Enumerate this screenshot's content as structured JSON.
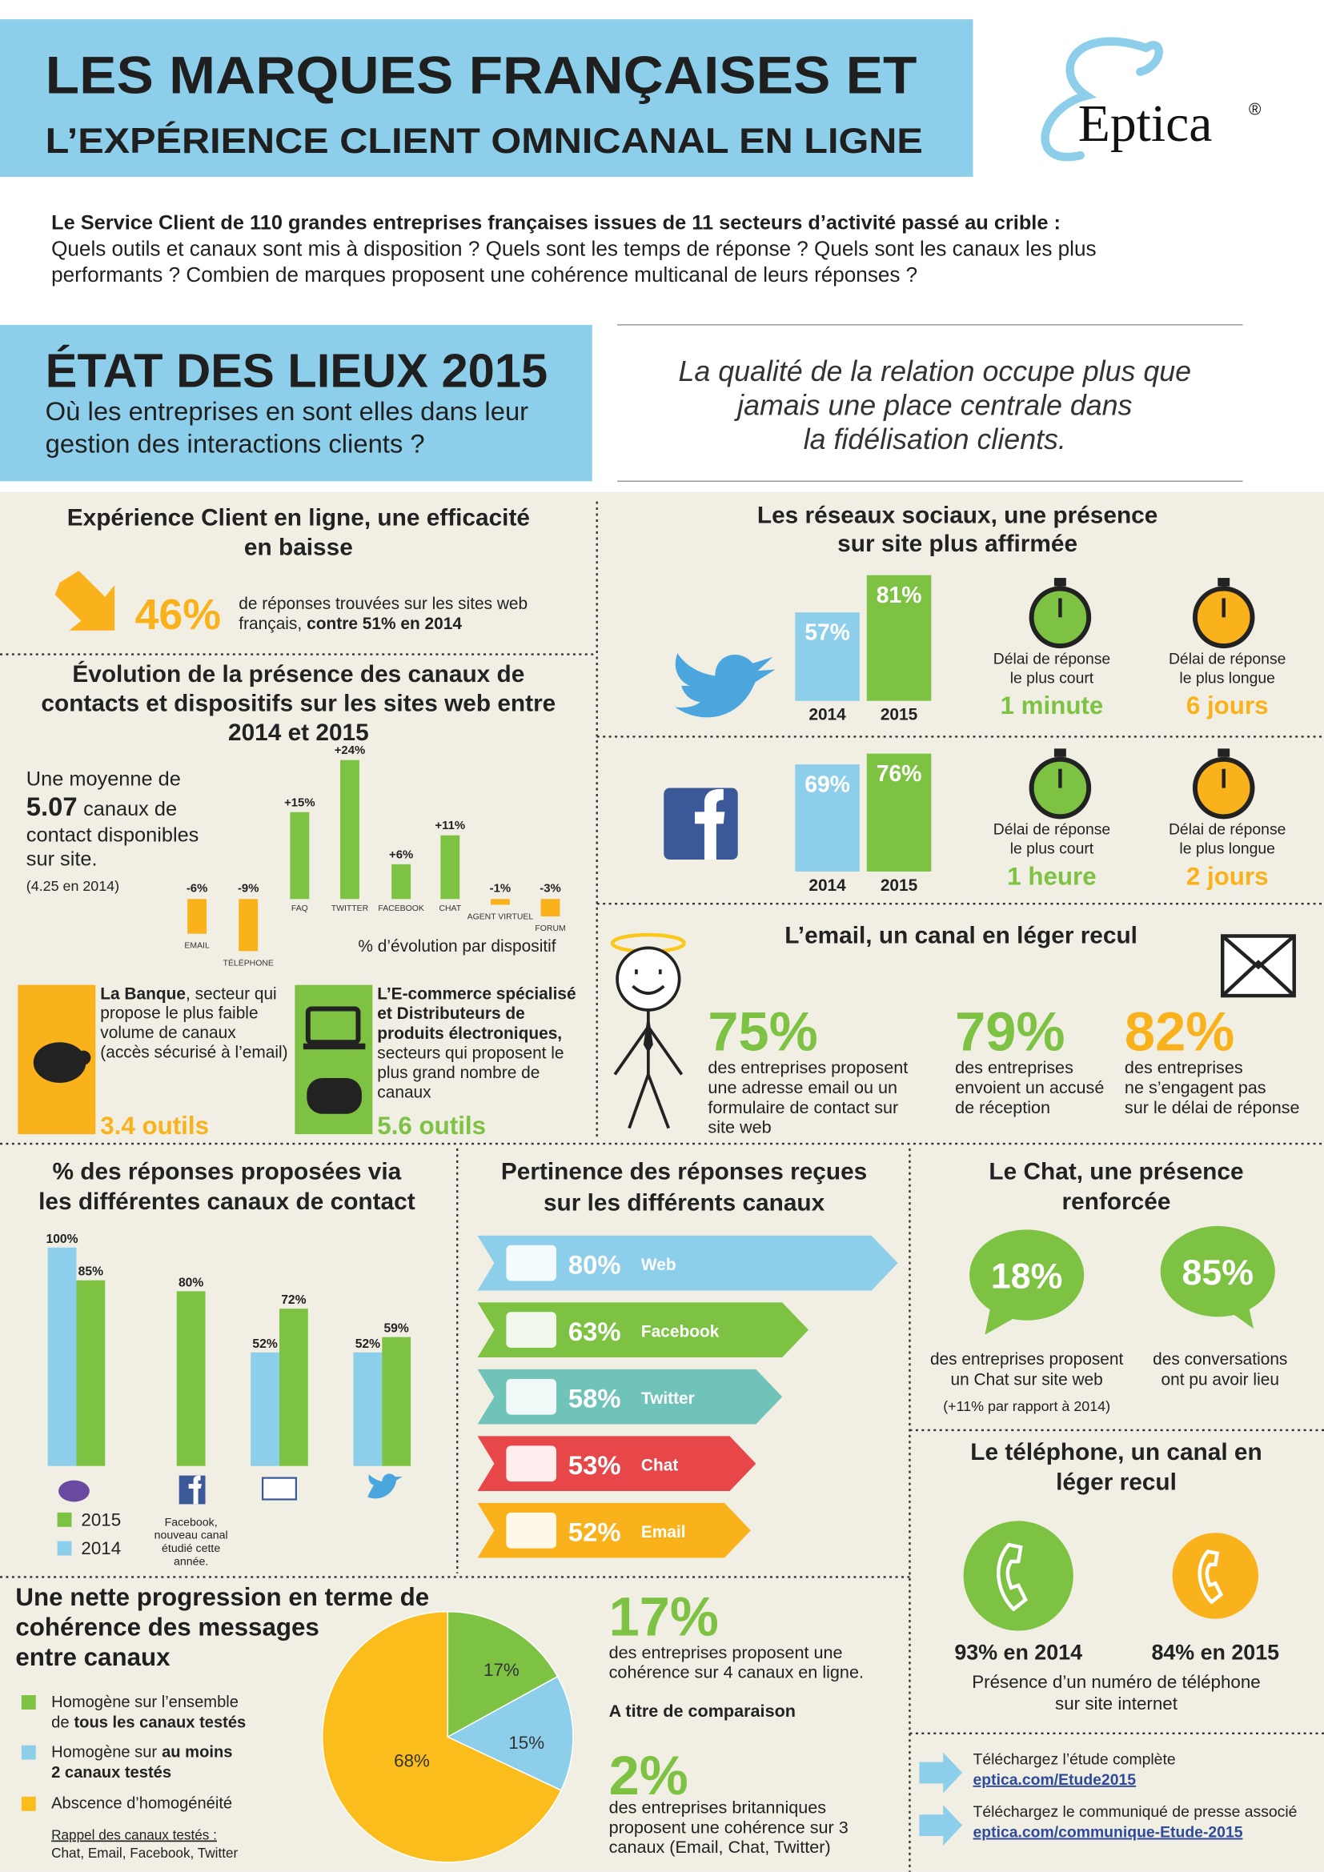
{
  "header": {
    "title_line1": "LES MARQUES FRANÇAISES ET",
    "title_line2": "L’EXPÉRIENCE CLIENT OMNICANAL EN LIGNE",
    "logo": "Eptica",
    "logo_mark": "®"
  },
  "intro": {
    "bold_line": "Le Service Client de 110 grandes entreprises françaises issues de 11 secteurs d’activité passé au crible :",
    "lines": [
      "Quels outils et canaux sont mis à disposition ? Quels sont les temps de réponse ? Quels sont les canaux les plus",
      "performants ? Combien de marques proposent une cohérence multicanal de leurs réponses ?"
    ]
  },
  "state": {
    "title": "ÉTAT DES LIEUX 2015",
    "subtitle": [
      "Où les entreprises en sont elles dans leur",
      "gestion des interactions clients ?"
    ],
    "quote": [
      "La qualité de la relation occupe plus que",
      "jamais une place centrale dans",
      "la fidélisation clients."
    ]
  },
  "efficacy": {
    "title": [
      "Expérience Client en ligne, une efficacité",
      "en baisse"
    ],
    "value": "46%",
    "text_line1": "de réponses trouvées sur les sites web",
    "text_line2": "français,",
    "text_line2_bold": "contre 51% en 2014"
  },
  "evolution": {
    "title": [
      "Évolution de la présence des canaux de",
      "contacts et dispositifs sur les sites web entre",
      "2014 et 2015"
    ],
    "average_intro": "Une moyenne de",
    "average_value": "5.07",
    "average_unit": "canaux de",
    "average_lines": [
      "contact disponibles",
      "sur site."
    ],
    "average_2014": "(4.25 en 2014)",
    "caption": "% d’évolution par dispositif",
    "chart": {
      "type": "bar",
      "categories": [
        "EMAIL",
        "TÉLÉPHONE",
        "FAQ",
        "TWITTER",
        "FACEBOOK",
        "CHAT",
        "AGENT VIRTUEL",
        "FORUM"
      ],
      "values": [
        -6,
        -9,
        15,
        24,
        6,
        11,
        -1,
        -3
      ],
      "value_labels": [
        "-6%",
        "-9%",
        "+15%",
        "+24%",
        "+6%",
        "+11%",
        "-1%",
        "-3%"
      ],
      "positive_color": "#7dc242",
      "negative_color": "#f9b21b"
    },
    "bank": {
      "name": "La Banque",
      "name_rest": ", secteur qui",
      "lines": [
        "propose le plus faible",
        "volume de canaux",
        "(accès sécurisé à l’email)"
      ],
      "value": "3.4 outils"
    },
    "ecommerce": {
      "bold_lines": [
        "L’E-commerce spécialisé",
        "et Distributeurs de",
        "produits électroniques,"
      ],
      "lines": [
        "secteurs qui proposent le",
        "plus grand nombre de",
        "canaux"
      ],
      "value": "5.6 outils"
    }
  },
  "social": {
    "title": [
      "Les réseaux sociaux, une présence",
      "sur site plus affirmée"
    ],
    "twitter": {
      "chart": {
        "type": "bar",
        "categories": [
          "2014",
          "2015"
        ],
        "values": [
          57,
          81
        ],
        "value_labels": [
          "57%",
          "81%"
        ],
        "colors": [
          "#8dcfea",
          "#7dc242"
        ]
      },
      "shortest_label": [
        "Délai de réponse",
        "le plus court"
      ],
      "shortest_value": "1 minute",
      "longest_label": [
        "Délai de réponse",
        "le plus longue"
      ],
      "longest_value": "6 jours"
    },
    "facebook": {
      "chart": {
        "type": "bar",
        "categories": [
          "2014",
          "2015"
        ],
        "values": [
          69,
          76
        ],
        "value_labels": [
          "69%",
          "76%"
        ],
        "colors": [
          "#8dcfea",
          "#7dc242"
        ]
      },
      "shortest_label": [
        "Délai de réponse",
        "le plus court"
      ],
      "shortest_value": "1 heure",
      "longest_label": [
        "Délai de réponse",
        "le plus longue"
      ],
      "longest_value": "2 jours"
    }
  },
  "email": {
    "title": "L’email, un canal en léger recul",
    "stats": [
      {
        "value": "75%",
        "lines": [
          "des entreprises proposent",
          "une adresse email ou un",
          "formulaire de contact sur",
          "site web"
        ]
      },
      {
        "value": "79%",
        "lines": [
          "des entreprises",
          "envoient un accusé",
          "de réception"
        ]
      },
      {
        "value": "82%",
        "lines": [
          "des entreprises",
          "ne s’engagent pas",
          "sur le délai de réponse"
        ]
      }
    ]
  },
  "responses": {
    "title": [
      "% des réponses proposées via",
      "les différentes canaux de contact"
    ],
    "note": [
      "Facebook,",
      "nouveau canal",
      "étudié cette",
      "année."
    ],
    "chart": {
      "type": "bar",
      "categories": [
        null,
        null,
        null,
        null
      ],
      "series": [
        {
          "name": "2015",
          "color": "#7dc242",
          "values": [
            85,
            80,
            72,
            59
          ],
          "value_labels": [
            "85%",
            "80%",
            "72%",
            "59%"
          ]
        },
        {
          "name": "2014",
          "color": "#8dcfea",
          "values": [
            100,
            null,
            52,
            52
          ],
          "value_labels": [
            "100%",
            null,
            "52%",
            "52%"
          ]
        }
      ],
      "ylim": [
        0,
        100
      ]
    }
  },
  "pertinence": {
    "title": [
      "Pertinence des réponses reçues",
      "sur les différents canaux"
    ],
    "chart": {
      "type": "hbar",
      "categories": [
        "Web",
        "Facebook",
        "Twitter",
        "Chat",
        "Email"
      ],
      "values": [
        80,
        63,
        58,
        53,
        52
      ],
      "value_labels": [
        "80%",
        "63%",
        "58%",
        "53%",
        "52%"
      ],
      "colors": [
        "#8dcfea",
        "#7dc242",
        "#6fc3b8",
        "#e8474a",
        "#f9b21b"
      ]
    }
  },
  "chat": {
    "title": [
      "Le Chat, une présence",
      "renforcée"
    ],
    "stats": [
      {
        "value": "18%",
        "lines": [
          "des entreprises proposent",
          "un Chat sur site web"
        ],
        "note": "(+11% par rapport à 2014)"
      },
      {
        "value": "85%",
        "lines": [
          "des conversations",
          "ont pu avoir lieu"
        ]
      }
    ]
  },
  "phone": {
    "title": [
      "Le téléphone, un canal en",
      "léger recul"
    ],
    "stat_2014": "93% en 2014",
    "stat_2015": "84% en 2015",
    "lines": [
      "Présence d’un numéro de téléphone",
      "sur site internet"
    ]
  },
  "downloads": [
    {
      "text": "Téléchargez l’étude complète",
      "link": "eptica.com/Etude2015"
    },
    {
      "text": "Téléchargez le communiqué de presse associé",
      "link": "eptica.com/communique-Etude-2015"
    }
  ],
  "coherence": {
    "title": [
      "Une nette progression en terme de",
      "cohérence des messages",
      "entre canaux"
    ],
    "legend": {
      "all_line1": "Homogène sur l’ensemble",
      "all_line2": "de",
      "all_line2_bold": "tous les canaux testés",
      "two_line1": "Homogène sur",
      "two_line1_bold": "au moins",
      "two_line2_bold": "2 canaux testés",
      "none": "Abscence d’homogénéité"
    },
    "footnote_title": "Rappel des canaux testés :",
    "footnote": "Chat, Email, Facebook, Twitter",
    "chart": {
      "type": "pie",
      "values": [
        17,
        15,
        68
      ],
      "value_labels": [
        "17%",
        "15%",
        "68%"
      ],
      "colors": [
        "#7dc242",
        "#8dcfea",
        "#fbbd1c"
      ]
    },
    "fr_value": "17%",
    "fr_lines": [
      "des entreprises proposent une",
      "cohérence sur 4 canaux en ligne."
    ],
    "comparison": "A titre de comparaison",
    "uk_value": "2%",
    "uk_lines": [
      "des entreprises britanniques",
      "proposent une cohérence sur 3",
      "canaux (Email, Chat, Twitter)"
    ]
  }
}
